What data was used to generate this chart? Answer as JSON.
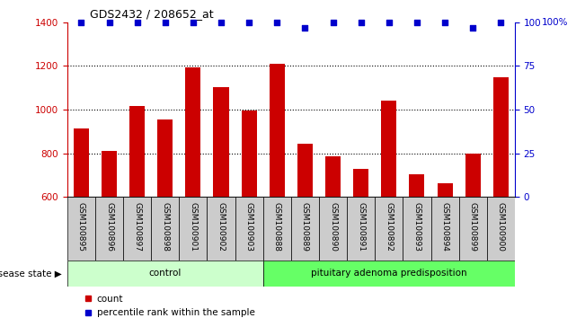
{
  "title": "GDS2432 / 208652_at",
  "samples": [
    "GSM100895",
    "GSM100896",
    "GSM100897",
    "GSM100898",
    "GSM100901",
    "GSM100902",
    "GSM100903",
    "GSM100888",
    "GSM100889",
    "GSM100890",
    "GSM100891",
    "GSM100892",
    "GSM100893",
    "GSM100894",
    "GSM100899",
    "GSM100900"
  ],
  "counts": [
    915,
    810,
    1015,
    955,
    1195,
    1105,
    995,
    1210,
    845,
    785,
    730,
    1040,
    705,
    665,
    800,
    1150
  ],
  "percentiles": [
    100,
    100,
    100,
    100,
    100,
    100,
    100,
    100,
    97,
    100,
    100,
    100,
    100,
    100,
    97,
    100
  ],
  "ylim_left": [
    600,
    1400
  ],
  "ylim_right": [
    0,
    100
  ],
  "yticks_left": [
    600,
    800,
    1000,
    1200,
    1400
  ],
  "yticks_right": [
    0,
    25,
    50,
    75,
    100
  ],
  "bar_color": "#cc0000",
  "dot_color": "#0000cc",
  "control_count": 7,
  "adenoma_count": 9,
  "control_label": "control",
  "adenoma_label": "pituitary adenoma predisposition",
  "control_color": "#ccffcc",
  "adenoma_color": "#66ff66",
  "disease_label": "disease state",
  "legend_count": "count",
  "legend_percentile": "percentile rank within the sample",
  "tick_bg_color": "#cccccc",
  "right_axis_label": "100%"
}
